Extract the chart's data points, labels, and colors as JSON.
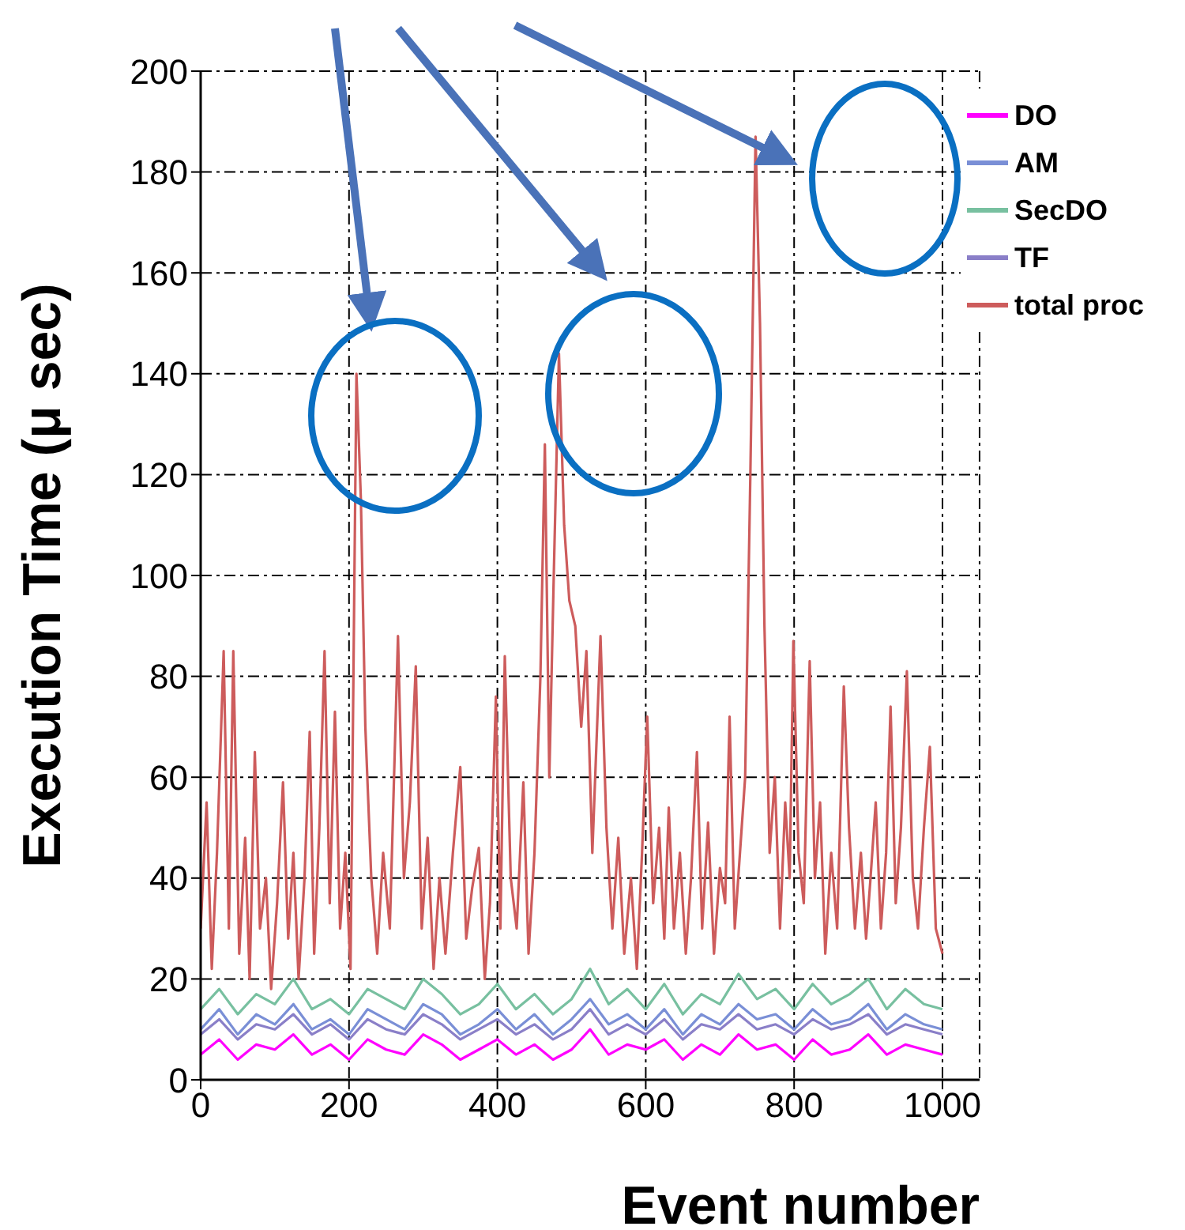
{
  "chart_data": {
    "type": "line",
    "xlabel": "Event number",
    "ylabel": "Execution Time (μ sec)",
    "xlim": [
      0,
      1050
    ],
    "xticks": [
      0,
      200,
      400,
      600,
      800,
      1000
    ],
    "ylim": [
      0,
      200
    ],
    "yticks": [
      0,
      20,
      40,
      60,
      80,
      100,
      120,
      140,
      160,
      180,
      200
    ],
    "grid": true,
    "legend": "top right",
    "marker": "none",
    "line_style": "solid",
    "series": [
      {
        "name": "DO",
        "color": "#ff00ff",
        "x": [
          0,
          25,
          50,
          75,
          100,
          125,
          150,
          175,
          200,
          225,
          250,
          275,
          300,
          325,
          350,
          375,
          400,
          425,
          450,
          475,
          500,
          525,
          550,
          575,
          600,
          625,
          650,
          675,
          700,
          725,
          750,
          775,
          800,
          825,
          850,
          875,
          900,
          925,
          950,
          975,
          1000
        ],
        "values": [
          5,
          8,
          4,
          7,
          6,
          9,
          5,
          7,
          4,
          8,
          6,
          5,
          9,
          7,
          4,
          6,
          8,
          5,
          7,
          4,
          6,
          10,
          5,
          7,
          6,
          8,
          4,
          7,
          5,
          9,
          6,
          7,
          4,
          8,
          5,
          6,
          9,
          5,
          7,
          6,
          5
        ]
      },
      {
        "name": "AM",
        "color": "#7a8fd6",
        "x": [
          0,
          25,
          50,
          75,
          100,
          125,
          150,
          175,
          200,
          225,
          250,
          275,
          300,
          325,
          350,
          375,
          400,
          425,
          450,
          475,
          500,
          525,
          550,
          575,
          600,
          625,
          650,
          675,
          700,
          725,
          750,
          775,
          800,
          825,
          850,
          875,
          900,
          925,
          950,
          975,
          1000
        ],
        "values": [
          10,
          14,
          9,
          13,
          11,
          15,
          10,
          12,
          9,
          14,
          12,
          10,
          15,
          13,
          9,
          11,
          14,
          10,
          13,
          9,
          12,
          16,
          11,
          13,
          10,
          14,
          9,
          13,
          11,
          15,
          12,
          13,
          10,
          14,
          11,
          12,
          15,
          10,
          13,
          11,
          10
        ]
      },
      {
        "name": "SecDO",
        "color": "#78c0a0",
        "x": [
          0,
          25,
          50,
          75,
          100,
          125,
          150,
          175,
          200,
          225,
          250,
          275,
          300,
          325,
          350,
          375,
          400,
          425,
          450,
          475,
          500,
          525,
          550,
          575,
          600,
          625,
          650,
          675,
          700,
          725,
          750,
          775,
          800,
          825,
          850,
          875,
          900,
          925,
          950,
          975,
          1000
        ],
        "values": [
          14,
          18,
          13,
          17,
          15,
          20,
          14,
          16,
          13,
          18,
          16,
          14,
          20,
          17,
          13,
          15,
          19,
          14,
          17,
          13,
          16,
          22,
          15,
          18,
          14,
          19,
          13,
          17,
          15,
          21,
          16,
          18,
          14,
          19,
          15,
          17,
          20,
          14,
          18,
          15,
          14
        ]
      },
      {
        "name": "TF",
        "color": "#8a7fc8",
        "x": [
          0,
          25,
          50,
          75,
          100,
          125,
          150,
          175,
          200,
          225,
          250,
          275,
          300,
          325,
          350,
          375,
          400,
          425,
          450,
          475,
          500,
          525,
          550,
          575,
          600,
          625,
          650,
          675,
          700,
          725,
          750,
          775,
          800,
          825,
          850,
          875,
          900,
          925,
          950,
          975,
          1000
        ],
        "values": [
          9,
          12,
          8,
          11,
          10,
          13,
          9,
          11,
          8,
          12,
          10,
          9,
          13,
          11,
          8,
          10,
          12,
          9,
          11,
          8,
          10,
          14,
          9,
          11,
          9,
          12,
          8,
          11,
          10,
          13,
          10,
          11,
          9,
          12,
          10,
          11,
          13,
          9,
          11,
          10,
          9
        ]
      },
      {
        "name": "total proc",
        "color": "#cd5c5c",
        "x": [
          0,
          8,
          15,
          22,
          31,
          38,
          44,
          52,
          60,
          66,
          73,
          80,
          88,
          95,
          103,
          111,
          118,
          125,
          132,
          140,
          147,
          153,
          160,
          167,
          174,
          181,
          188,
          195,
          202,
          210,
          216,
          222,
          230,
          238,
          246,
          255,
          266,
          274,
          282,
          290,
          298,
          306,
          314,
          322,
          330,
          340,
          350,
          358,
          366,
          375,
          383,
          390,
          398,
          404,
          410,
          418,
          426,
          435,
          442,
          450,
          458,
          464,
          470,
          476,
          483,
          490,
          497,
          505,
          513,
          520,
          528,
          539,
          547,
          555,
          563,
          571,
          580,
          588,
          595,
          602,
          610,
          618,
          625,
          631,
          638,
          646,
          654,
          661,
          669,
          676,
          684,
          692,
          700,
          707,
          713,
          720,
          727,
          734,
          741,
          748,
          754,
          760,
          767,
          774,
          781,
          788,
          794,
          799,
          806,
          813,
          821,
          828,
          835,
          842,
          850,
          858,
          867,
          874,
          882,
          890,
          897,
          903,
          910,
          917,
          924,
          930,
          937,
          944,
          952,
          960,
          967,
          975,
          983,
          991,
          1000
        ],
        "values": [
          30,
          55,
          22,
          45,
          85,
          30,
          85,
          25,
          48,
          20,
          65,
          30,
          40,
          18,
          35,
          59,
          28,
          45,
          20,
          40,
          69,
          25,
          50,
          85,
          35,
          73,
          30,
          45,
          22,
          140,
          115,
          70,
          40,
          25,
          45,
          30,
          88,
          40,
          55,
          82,
          30,
          48,
          22,
          40,
          25,
          45,
          62,
          28,
          38,
          46,
          20,
          35,
          76,
          30,
          84,
          40,
          30,
          59,
          25,
          45,
          80,
          126,
          60,
          100,
          144,
          110,
          95,
          90,
          70,
          85,
          45,
          88,
          50,
          30,
          48,
          25,
          40,
          22,
          45,
          72,
          35,
          50,
          28,
          54,
          30,
          45,
          25,
          40,
          65,
          30,
          51,
          25,
          42,
          35,
          72,
          30,
          45,
          60,
          120,
          187,
          150,
          90,
          45,
          60,
          30,
          55,
          40,
          87,
          45,
          35,
          83,
          40,
          55,
          25,
          45,
          30,
          78,
          50,
          30,
          45,
          28,
          40,
          55,
          30,
          45,
          74,
          35,
          50,
          81,
          40,
          30,
          50,
          66,
          30,
          25
        ]
      }
    ]
  }
}
